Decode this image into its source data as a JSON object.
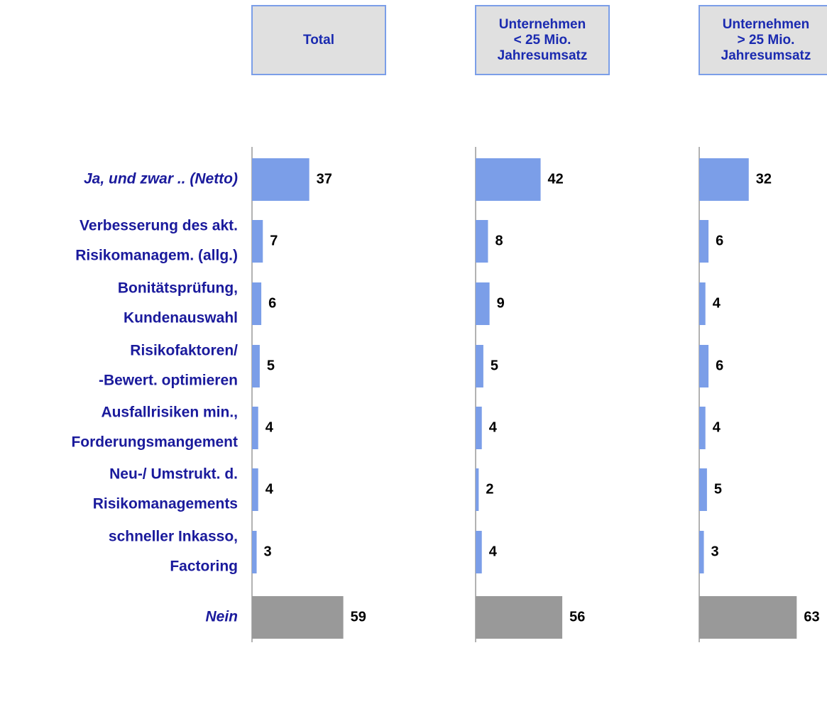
{
  "chart_data": {
    "type": "bar",
    "orientation": "horizontal",
    "categories": [
      [
        "Ja, und zwar .. (Netto)"
      ],
      [
        "Verbesserung des akt.",
        "Risikomanagem. (allg.)"
      ],
      [
        "Bonitätsprüfung,",
        "Kundenauswahl"
      ],
      [
        "Risikofaktoren/",
        "-Bewert. optimieren"
      ],
      [
        "Ausfallrisiken min.,",
        "Forderungsmangement"
      ],
      [
        "Neu-/ Umstrukt. d.",
        "Risikomanagements"
      ],
      [
        "schneller Inkasso,",
        "Factoring"
      ],
      [
        "Nein"
      ]
    ],
    "colors": [
      "#7b9ee8",
      "#7b9ee8",
      "#7b9ee8",
      "#7b9ee8",
      "#7b9ee8",
      "#7b9ee8",
      "#7b9ee8",
      "#999999"
    ],
    "series": [
      {
        "name": [
          "Total"
        ],
        "values": [
          37,
          7,
          6,
          5,
          4,
          4,
          3,
          59
        ]
      },
      {
        "name": [
          "Unternehmen",
          "< 25 Mio.",
          "Jahresumsatz"
        ],
        "values": [
          42,
          8,
          9,
          5,
          4,
          2,
          4,
          56
        ]
      },
      {
        "name": [
          "Unternehmen",
          "> 25 Mio.",
          "Jahresumsatz"
        ],
        "values": [
          32,
          6,
          4,
          6,
          4,
          5,
          3,
          63
        ]
      }
    ]
  }
}
